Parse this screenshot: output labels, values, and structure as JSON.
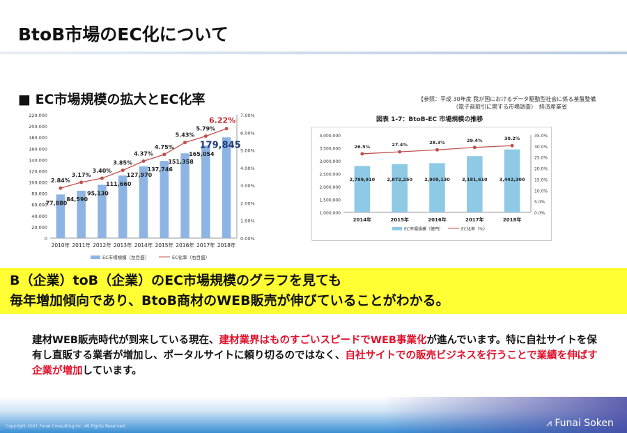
{
  "slide": {
    "title": "BtoB市場のEC化について",
    "subtitle": "■  EC市場規模の拡大とEC化率",
    "source_line1": "【参照：平成 30年度 我が国におけるデータ駆動型社会に係る基盤整備",
    "source_line2": "（電子商取引に関する市場調査）　経済産業省",
    "banner_line1": "B（企業）toB（企業）のEC市場規模のグラフを見ても",
    "banner_line2": "毎年増加傾向であり、BtoB商材のWEB販売が伸びていることがわかる。",
    "body_1": "建材WEB販売時代が到来している現在、",
    "body_2_red": "建材業界はものすごいスピードでWEB事業化",
    "body_3": "が進んでいます。特に自社サイトを保有し直販する業者が増加し、ポータルサイトに頼り切るのではなく、",
    "body_4_red": "自社サイトでの販売ビジネスを行うことで業績を伸ばす企業が増加",
    "body_5": "しています。",
    "copyright": "Copyright 2021 Funai Consulting Inc. All Rights Reserved.",
    "logo": "Funai Soken"
  },
  "chart_data": [
    {
      "type": "bar",
      "categories": [
        "2010年",
        "2011年",
        "2012年",
        "2013年",
        "2014年",
        "2015年",
        "2016年",
        "2017年",
        "2018年"
      ],
      "series": [
        {
          "name": "EC市場規模（左目盛）",
          "values": [
            77880,
            84590,
            95130,
            111660,
            127970,
            137746,
            151358,
            165054,
            179845
          ],
          "labels": [
            "77,880",
            "84,590",
            "95,130",
            "111,660",
            "127,970",
            "137,746",
            "151,358",
            "165,054",
            "179,845"
          ]
        },
        {
          "name": "EC化率（右目盛）",
          "type": "line",
          "values": [
            2.84,
            3.17,
            3.4,
            3.85,
            4.37,
            4.75,
            5.43,
            5.79,
            6.22
          ],
          "labels": [
            "2.84%",
            "3.17%",
            "3.40%",
            "3.85%",
            "4.37%",
            "4.75%",
            "5.43%",
            "5.79%",
            "6.22%"
          ]
        }
      ],
      "ylim": [
        0,
        220000
      ],
      "yticks": [
        "0",
        "20,000",
        "40,000",
        "60,000",
        "80,000",
        "100,000",
        "120,000",
        "140,000",
        "160,000",
        "180,000",
        "200,000",
        "220,000"
      ],
      "y2lim": [
        0,
        7
      ],
      "y2ticks": [
        "0.00%",
        "1.00%",
        "2.00%",
        "3.00%",
        "4.00%",
        "5.00%",
        "6.00%",
        "7.00%"
      ],
      "legend": "bottom",
      "colors": {
        "bar": "#8db4e2",
        "line": "#c0504d"
      }
    },
    {
      "type": "bar",
      "title": "図表 1-7：BtoB-EC 市場規模の推移",
      "categories": [
        "2014年",
        "2015年",
        "2016年",
        "2017年",
        "2018年"
      ],
      "series": [
        {
          "name": "EC市場規模（億円）",
          "values": [
            2799910,
            2872250,
            2909130,
            3181610,
            3442300
          ],
          "labels": [
            "2,799,910",
            "2,872,250",
            "2,909,130",
            "3,181,610",
            "3,442,300"
          ]
        },
        {
          "name": "EC化率（%）",
          "type": "line",
          "values": [
            26.5,
            27.4,
            28.3,
            29.4,
            30.2
          ],
          "labels": [
            "26.5%",
            "27.4%",
            "28.3%",
            "29.4%",
            "30.2%"
          ]
        }
      ],
      "ylim": [
        1000000,
        4000000
      ],
      "yticks": [
        "1,000,000",
        "1,500,000",
        "2,000,000",
        "2,500,000",
        "3,000,000",
        "3,500,000",
        "4,000,000"
      ],
      "y2lim": [
        0,
        35
      ],
      "y2ticks": [
        "0.0%",
        "5.0%",
        "10.0%",
        "15.0%",
        "20.0%",
        "25.0%",
        "30.0%",
        "35.0%"
      ],
      "legend": "bottom",
      "colors": {
        "bar": "#8ecae6",
        "line": "#c0504d"
      }
    }
  ]
}
